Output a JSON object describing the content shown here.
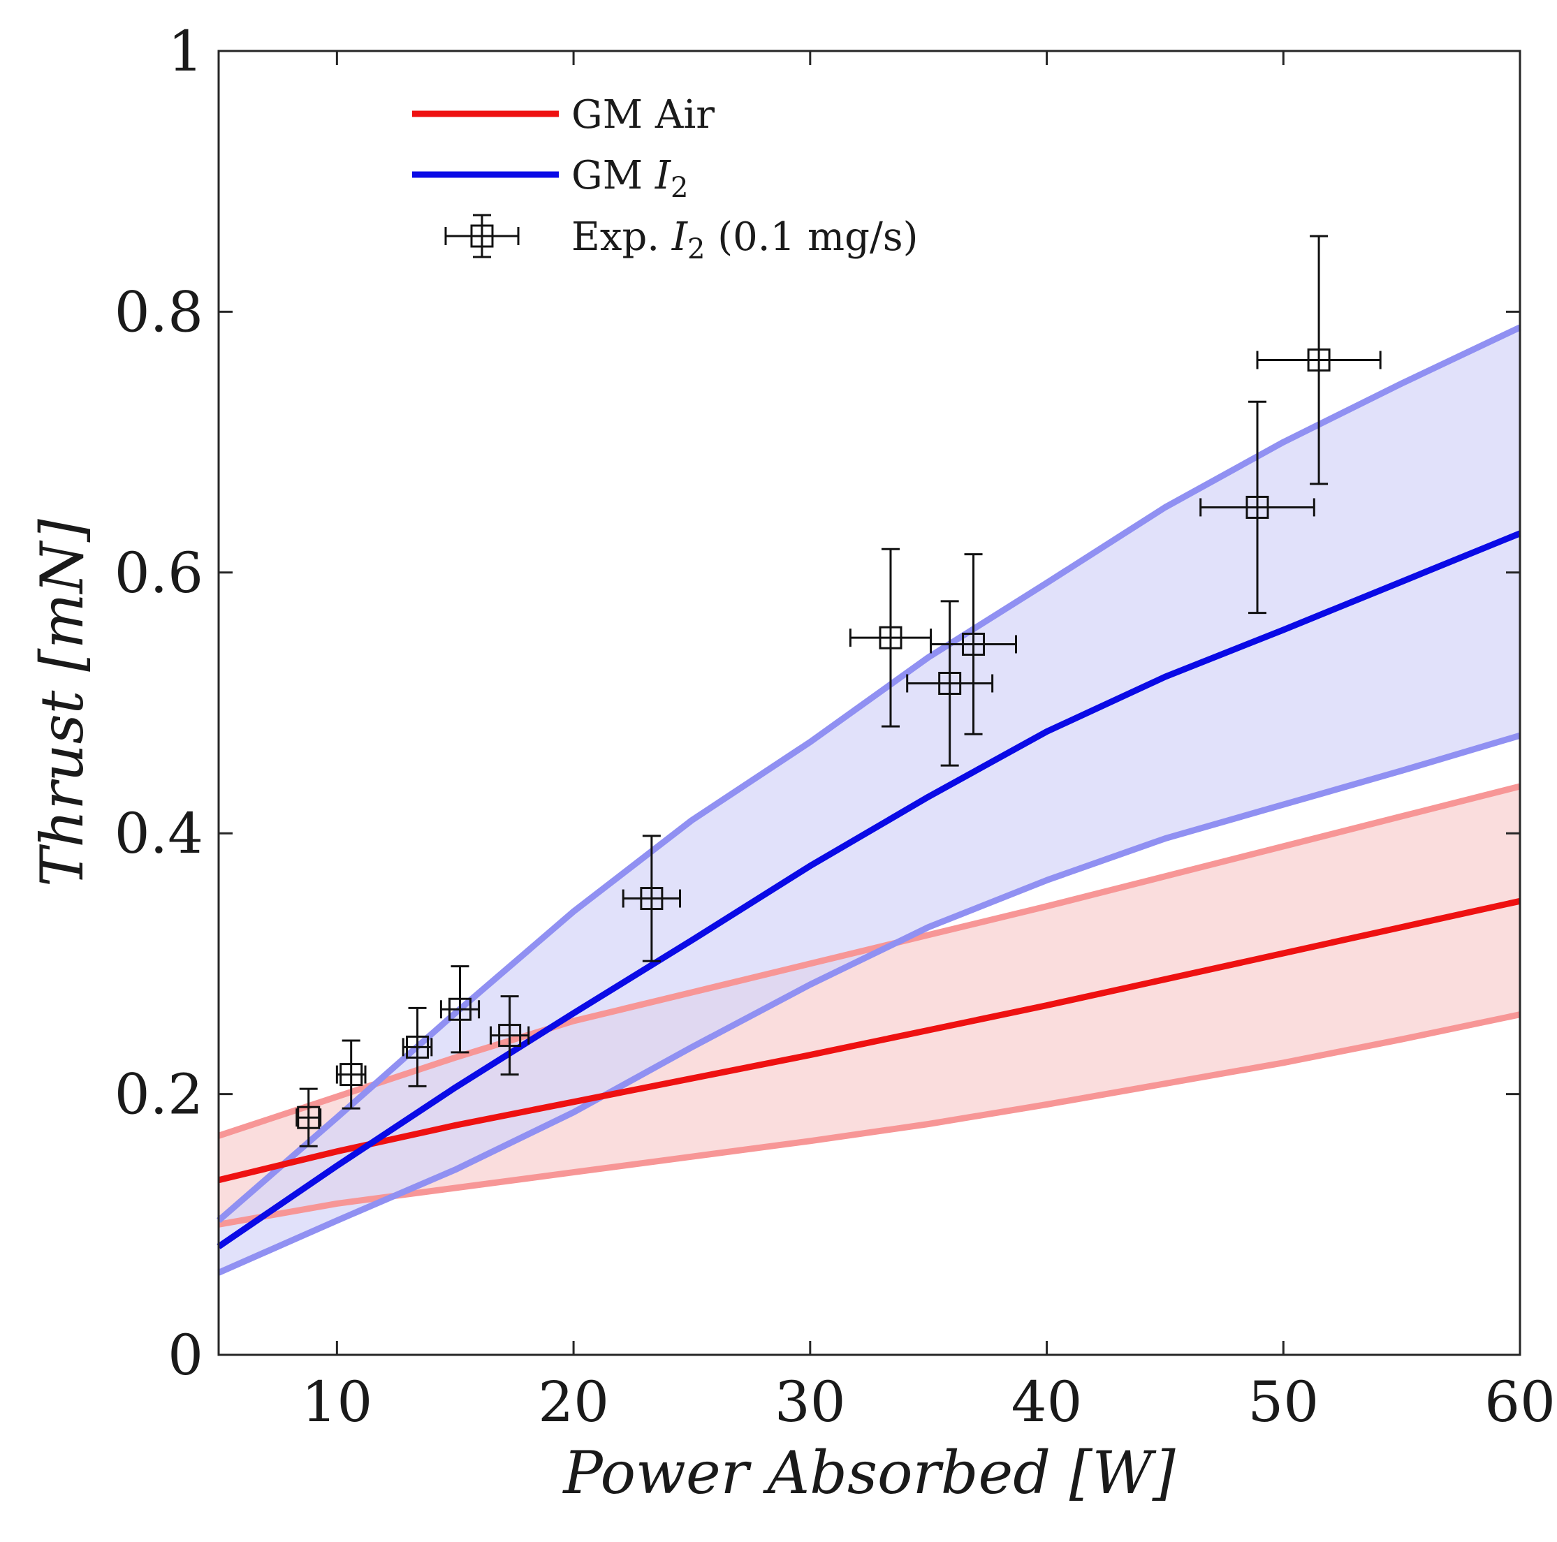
{
  "chart_data": {
    "type": "line",
    "title": "",
    "xlabel": "Power Absorbed [W]",
    "ylabel": "Thrust [mN]",
    "xlim": [
      5,
      60
    ],
    "ylim": [
      0,
      1
    ],
    "xticks": [
      10,
      20,
      30,
      40,
      50,
      60
    ],
    "yticks": [
      0,
      0.2,
      0.4,
      0.6,
      0.8,
      1
    ],
    "xtick_labels": [
      "10",
      "20",
      "30",
      "40",
      "50",
      "60"
    ],
    "ytick_labels": [
      "0",
      "0.2",
      "0.4",
      "0.6",
      "0.8",
      "1"
    ],
    "grid": false,
    "legend_position": "top-left",
    "legend": [
      {
        "key": "air",
        "label": "GM Air"
      },
      {
        "key": "i2",
        "label_prefix": "GM ",
        "label_symbol": "I",
        "label_sub": "2"
      },
      {
        "key": "exp",
        "label_prefix": "Exp. ",
        "label_symbol": "I",
        "label_sub": "2",
        "label_suffix": " (0.1 mg/s)"
      }
    ],
    "x": [
      5,
      10,
      15,
      20,
      25,
      30,
      35,
      40,
      45,
      50,
      55,
      60
    ],
    "series": [
      {
        "name": "GM Air",
        "color": "#ee1111",
        "band_color": "#f8d0d0",
        "band_edge_color": "#f79696",
        "values": [
          0.134,
          0.156,
          0.176,
          0.194,
          0.212,
          0.23,
          0.249,
          0.268,
          0.288,
          0.308,
          0.328,
          0.348
        ],
        "upper": [
          0.168,
          0.198,
          0.228,
          0.256,
          0.278,
          0.3,
          0.322,
          0.344,
          0.367,
          0.39,
          0.413,
          0.436
        ],
        "lower": [
          0.1,
          0.116,
          0.128,
          0.14,
          0.152,
          0.164,
          0.177,
          0.192,
          0.208,
          0.224,
          0.242,
          0.261
        ]
      },
      {
        "name": "GM I2",
        "color": "#0a0ae6",
        "band_color": "#d6d6f8",
        "band_edge_color": "#9090f2",
        "values": [
          0.083,
          0.145,
          0.205,
          0.262,
          0.318,
          0.375,
          0.428,
          0.478,
          0.52,
          0.556,
          0.593,
          0.63
        ],
        "upper": [
          0.103,
          0.182,
          0.262,
          0.34,
          0.41,
          0.47,
          0.535,
          0.592,
          0.65,
          0.7,
          0.745,
          0.788
        ],
        "lower": [
          0.063,
          0.103,
          0.142,
          0.186,
          0.236,
          0.284,
          0.328,
          0.364,
          0.396,
          0.422,
          0.448,
          0.475
        ]
      }
    ],
    "experimental": {
      "name": "Exp. I2 (0.1 mg/s)",
      "points": [
        {
          "x": 8.8,
          "y": 0.182,
          "xerr": 0.5,
          "yerr": 0.022
        },
        {
          "x": 10.6,
          "y": 0.215,
          "xerr": 0.6,
          "yerr": 0.026
        },
        {
          "x": 13.4,
          "y": 0.236,
          "xerr": 0.6,
          "yerr": 0.03
        },
        {
          "x": 15.2,
          "y": 0.265,
          "xerr": 0.8,
          "yerr": 0.033
        },
        {
          "x": 17.3,
          "y": 0.245,
          "xerr": 0.8,
          "yerr": 0.03
        },
        {
          "x": 23.3,
          "y": 0.35,
          "xerr": 1.2,
          "yerr": 0.048
        },
        {
          "x": 33.4,
          "y": 0.55,
          "xerr": 1.7,
          "yerr": 0.068
        },
        {
          "x": 35.9,
          "y": 0.515,
          "xerr": 1.8,
          "yerr": 0.063
        },
        {
          "x": 36.9,
          "y": 0.545,
          "xerr": 1.8,
          "yerr": 0.069
        },
        {
          "x": 48.9,
          "y": 0.65,
          "xerr": 2.4,
          "yerr": 0.081
        },
        {
          "x": 51.5,
          "y": 0.763,
          "xerr": 2.6,
          "yerr": 0.095
        }
      ]
    }
  }
}
